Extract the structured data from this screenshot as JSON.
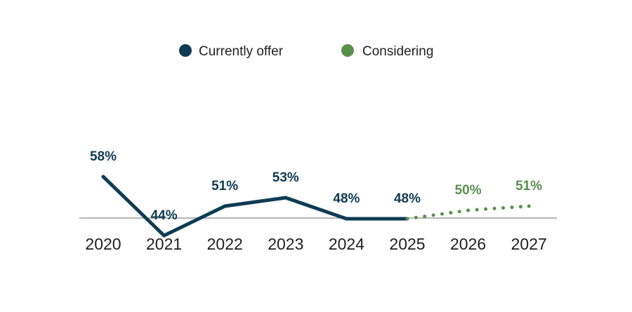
{
  "chart_data": {
    "type": "line",
    "title": "",
    "xlabel": "",
    "ylabel": "",
    "categories": [
      "2020",
      "2021",
      "2022",
      "2023",
      "2024",
      "2025",
      "2026",
      "2027"
    ],
    "series": [
      {
        "name": "Currently offer",
        "color": "#0f3b53",
        "style": "solid",
        "x": [
          "2020",
          "2021",
          "2022",
          "2023",
          "2024",
          "2025"
        ],
        "values": [
          58,
          44,
          51,
          53,
          48,
          48
        ],
        "labels": [
          "58%",
          "44%",
          "51%",
          "53%",
          "48%",
          "48%"
        ]
      },
      {
        "name": "Considering",
        "color": "#5a8f4e",
        "style": "dotted",
        "x": [
          "2025",
          "2026",
          "2027"
        ],
        "values": [
          48,
          50,
          51
        ],
        "labels": [
          "",
          "50%",
          "51%"
        ]
      }
    ],
    "ylim": [
      32,
      80
    ],
    "grid": false,
    "legend_position": "top-center",
    "baseline_color": "#8a8a8a",
    "tick_color": "#1f1f1f"
  }
}
